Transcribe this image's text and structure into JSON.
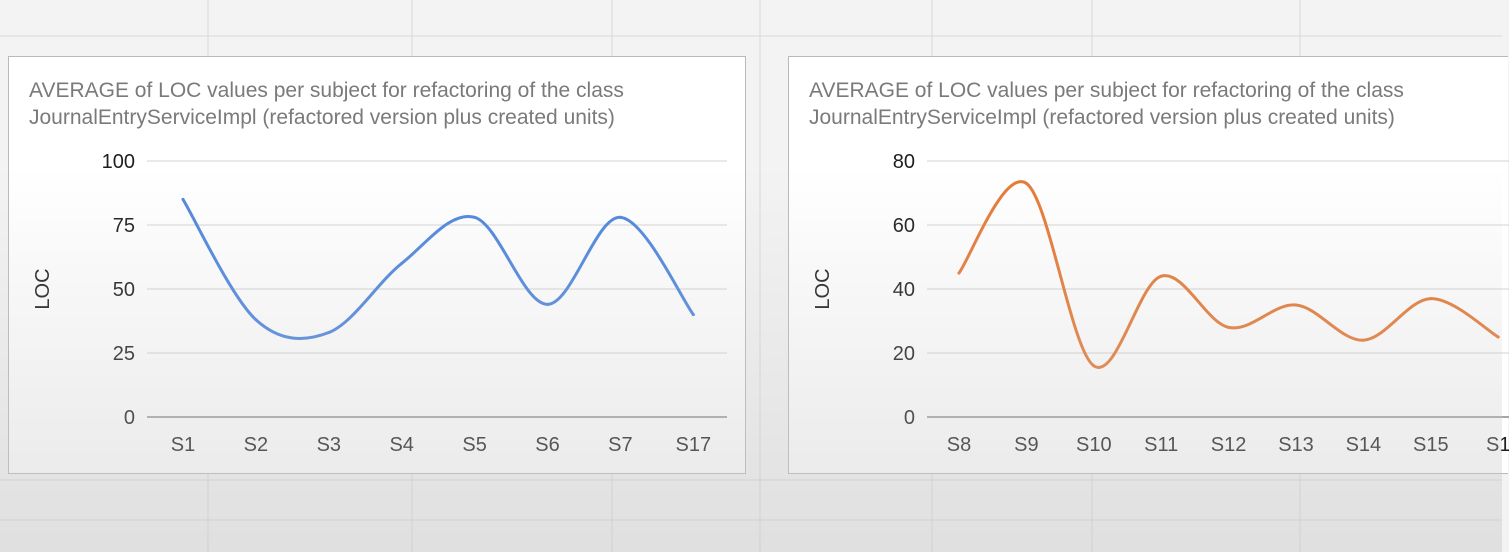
{
  "chart_data": [
    {
      "type": "line",
      "title": "AVERAGE of LOC values per subject for refactoring of the class\nJournalEntryServiceImpl (refactored version plus created units)",
      "xlabel": "",
      "ylabel": "LOC",
      "categories": [
        "S1",
        "S2",
        "S3",
        "S4",
        "S5",
        "S6",
        "S7",
        "S17"
      ],
      "series": [
        {
          "values": [
            85,
            38,
            33,
            60,
            78,
            44,
            78,
            40
          ],
          "color": "#4e86de"
        }
      ],
      "ylim": [
        0,
        100
      ],
      "yticks": [
        0,
        25,
        50,
        75,
        100
      ],
      "grid": true,
      "smooth": true,
      "legend": "none"
    },
    {
      "type": "line",
      "title": "AVERAGE of LOC values per subject for refactoring of the class\nJournalEntryServiceImpl (refactored version plus created units)",
      "xlabel": "",
      "ylabel": "LOC",
      "categories": [
        "S8",
        "S9",
        "S10",
        "S11",
        "S12",
        "S13",
        "S14",
        "S15",
        "S1"
      ],
      "series": [
        {
          "values": [
            45,
            73,
            16,
            44,
            28,
            35,
            24,
            37,
            25
          ],
          "color": "#e57a36"
        }
      ],
      "ylim": [
        0,
        80
      ],
      "yticks": [
        0,
        20,
        40,
        60,
        80
      ],
      "grid": true,
      "smooth": true,
      "legend": "none"
    }
  ]
}
